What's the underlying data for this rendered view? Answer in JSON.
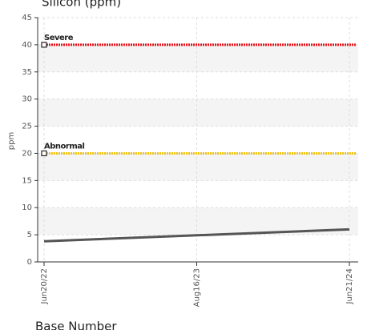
{
  "chart_data": {
    "type": "line",
    "title": "Silicon (ppm)",
    "y_label": "ppm",
    "footer": "Base Number",
    "categories": [
      "Jun20/22",
      "Aug16/23",
      "Jun21/24"
    ],
    "values": [
      3.8,
      4.9,
      6
    ],
    "color": "#555555",
    "ylim": [
      0,
      45
    ],
    "yticks": [
      0,
      5,
      10,
      15,
      20,
      25,
      30,
      35,
      40,
      45
    ],
    "grid": true,
    "thresholds": [
      {
        "name": "Severe",
        "value": 40,
        "color": "#e8141c"
      },
      {
        "name": "Abnormal",
        "value": 20,
        "color": "#f0c419"
      }
    ]
  }
}
